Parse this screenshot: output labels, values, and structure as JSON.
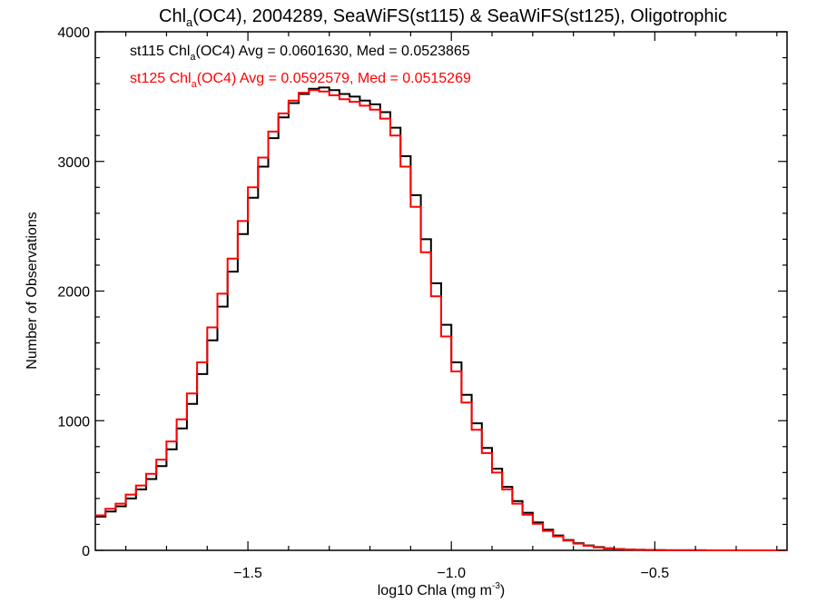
{
  "chart_data": {
    "type": "line",
    "title_parts": [
      "Chl",
      "a",
      "(OC4), 2004289, SeaWiFS(st115) & SeaWiFS(st125), Oligotrophic"
    ],
    "xlabel_parts": [
      "log10 Chla (mg m",
      "-3",
      ")"
    ],
    "ylabel": "Number of Observations",
    "xlim": [
      -1.875,
      -0.175
    ],
    "ylim": [
      0,
      4000
    ],
    "x_ticks": [
      -1.5,
      -1.0,
      -0.5
    ],
    "x_tick_labels": [
      "−1.5",
      "−1.0",
      "−0.5"
    ],
    "y_ticks": [
      0,
      1000,
      2000,
      3000,
      4000
    ],
    "y_tick_labels": [
      "0",
      "1000",
      "2000",
      "3000",
      "4000"
    ],
    "grid": false,
    "legend_position": "top-left",
    "series": [
      {
        "name_parts": [
          "st115 Chl",
          "a",
          "(OC4) Avg = 0.0601630, Med = 0.0523865"
        ],
        "color": "#000000",
        "x": [
          -1.875,
          -1.85,
          -1.825,
          -1.8,
          -1.775,
          -1.75,
          -1.725,
          -1.7,
          -1.675,
          -1.65,
          -1.625,
          -1.6,
          -1.575,
          -1.55,
          -1.525,
          -1.5,
          -1.475,
          -1.45,
          -1.425,
          -1.4,
          -1.375,
          -1.35,
          -1.325,
          -1.3,
          -1.275,
          -1.25,
          -1.225,
          -1.2,
          -1.175,
          -1.15,
          -1.125,
          -1.1,
          -1.075,
          -1.05,
          -1.025,
          -1.0,
          -0.975,
          -0.95,
          -0.925,
          -0.9,
          -0.875,
          -0.85,
          -0.825,
          -0.8,
          -0.775,
          -0.75,
          -0.725,
          -0.7,
          -0.675,
          -0.65,
          -0.625,
          -0.6,
          -0.575,
          -0.55,
          -0.525,
          -0.5,
          -0.475,
          -0.45,
          -0.425,
          -0.4,
          -0.375,
          -0.35,
          -0.325,
          -0.3,
          -0.275,
          -0.25,
          -0.225,
          -0.2,
          -0.175
        ],
        "y": [
          260,
          300,
          340,
          400,
          470,
          550,
          650,
          780,
          940,
          1130,
          1360,
          1620,
          1880,
          2150,
          2440,
          2720,
          2960,
          3180,
          3340,
          3450,
          3520,
          3560,
          3570,
          3550,
          3520,
          3500,
          3470,
          3440,
          3380,
          3260,
          3040,
          2740,
          2400,
          2060,
          1740,
          1450,
          1200,
          980,
          790,
          630,
          490,
          380,
          290,
          215,
          160,
          115,
          80,
          55,
          38,
          25,
          16,
          10,
          6,
          4,
          3,
          2,
          1,
          1,
          1,
          1,
          0,
          0,
          0,
          0,
          0,
          0,
          0,
          0,
          0
        ]
      },
      {
        "name_parts": [
          "st125 Chl",
          "a",
          "(OC4) Avg = 0.0592579, Med = 0.0515269"
        ],
        "color": "#ff0000",
        "x": [
          -1.875,
          -1.85,
          -1.825,
          -1.8,
          -1.775,
          -1.75,
          -1.725,
          -1.7,
          -1.675,
          -1.65,
          -1.625,
          -1.6,
          -1.575,
          -1.55,
          -1.525,
          -1.5,
          -1.475,
          -1.45,
          -1.425,
          -1.4,
          -1.375,
          -1.35,
          -1.325,
          -1.3,
          -1.275,
          -1.25,
          -1.225,
          -1.2,
          -1.175,
          -1.15,
          -1.125,
          -1.1,
          -1.075,
          -1.05,
          -1.025,
          -1.0,
          -0.975,
          -0.95,
          -0.925,
          -0.9,
          -0.875,
          -0.85,
          -0.825,
          -0.8,
          -0.775,
          -0.75,
          -0.725,
          -0.7,
          -0.675,
          -0.65,
          -0.625,
          -0.6,
          -0.575,
          -0.55,
          -0.525,
          -0.5,
          -0.475,
          -0.45,
          -0.425,
          -0.4,
          -0.375,
          -0.35,
          -0.325,
          -0.3,
          -0.275,
          -0.25,
          -0.225,
          -0.2,
          -0.175
        ],
        "y": [
          270,
          320,
          360,
          430,
          500,
          590,
          700,
          840,
          1010,
          1210,
          1450,
          1720,
          1980,
          2250,
          2540,
          2800,
          3030,
          3230,
          3370,
          3470,
          3530,
          3550,
          3540,
          3510,
          3480,
          3460,
          3430,
          3400,
          3330,
          3200,
          2960,
          2650,
          2300,
          1960,
          1650,
          1380,
          1140,
          930,
          750,
          600,
          470,
          360,
          275,
          205,
          150,
          108,
          75,
          52,
          35,
          23,
          15,
          9,
          6,
          4,
          3,
          2,
          1,
          1,
          1,
          1,
          0,
          0,
          0,
          0,
          0,
          0,
          0,
          0,
          0
        ]
      }
    ]
  }
}
